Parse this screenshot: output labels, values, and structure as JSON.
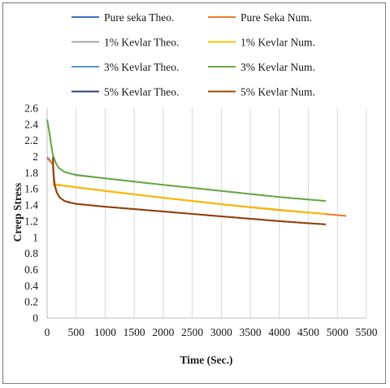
{
  "chart_data": {
    "type": "line",
    "xlabel": "Time (Sec.)",
    "ylabel": "Creep Stress",
    "xlim": [
      0,
      5500
    ],
    "ylim": [
      0,
      2.6
    ],
    "xticks": [
      0,
      500,
      1000,
      1500,
      2000,
      2500,
      3000,
      3500,
      4000,
      4500,
      5000,
      5500
    ],
    "yticks": [
      0,
      0.2,
      0.4,
      0.6,
      0.8,
      1,
      1.2,
      1.4,
      1.6,
      1.8,
      2,
      2.2,
      2.4,
      2.6
    ],
    "ytick_labels": [
      "0",
      "0.2",
      "0.4",
      "0.6",
      "0.8",
      "1",
      "1.2",
      "1.4",
      "1.6",
      "1.8",
      "2",
      "2.2",
      "2.4",
      "2.6"
    ],
    "grid": "vertical",
    "legend_position": "top",
    "series": [
      {
        "name": "Pure seka Theo.",
        "color": "#4472c4",
        "x": [
          0,
          40,
          80,
          100,
          120,
          200,
          300,
          500,
          1000,
          2000,
          3000,
          4000,
          4800
        ],
        "y": [
          1.99,
          1.96,
          1.92,
          1.9,
          1.65,
          1.645,
          1.64,
          1.62,
          1.575,
          1.49,
          1.41,
          1.335,
          1.29
        ]
      },
      {
        "name": "Pure Seka Num.",
        "color": "#ed7d31",
        "x": [
          0,
          40,
          80,
          100,
          120,
          200,
          300,
          500,
          1000,
          2000,
          3000,
          4000,
          5150
        ],
        "y": [
          1.98,
          1.95,
          1.92,
          1.9,
          1.66,
          1.65,
          1.64,
          1.62,
          1.575,
          1.49,
          1.41,
          1.34,
          1.265
        ]
      },
      {
        "name": "1% Kevlar Theo.",
        "color": "#a5a5a5",
        "x": [
          100,
          120,
          200,
          300,
          500,
          1000,
          2000,
          3000,
          4000,
          4800
        ],
        "y": [
          1.67,
          1.655,
          1.645,
          1.64,
          1.62,
          1.575,
          1.49,
          1.41,
          1.335,
          1.29
        ]
      },
      {
        "name": "1% Kevlar Num.",
        "color": "#ffc000",
        "x": [
          100,
          120,
          200,
          300,
          500,
          1000,
          2000,
          3000,
          4000,
          4800
        ],
        "y": [
          1.66,
          1.65,
          1.645,
          1.64,
          1.62,
          1.575,
          1.49,
          1.41,
          1.335,
          1.29
        ]
      },
      {
        "name": "3% Kevlar Theo.",
        "color": "#5b9bd5",
        "x": [
          0,
          30,
          60,
          100,
          150,
          200,
          300,
          400,
          500,
          1000,
          2000,
          3000,
          4000,
          4800
        ],
        "y": [
          2.46,
          2.35,
          2.2,
          2.02,
          1.92,
          1.86,
          1.81,
          1.79,
          1.775,
          1.73,
          1.65,
          1.575,
          1.5,
          1.45
        ]
      },
      {
        "name": "3% Kevlar Num.",
        "color": "#70ad47",
        "x": [
          0,
          30,
          60,
          100,
          150,
          200,
          300,
          400,
          500,
          1000,
          2000,
          3000,
          4000,
          4800
        ],
        "y": [
          2.45,
          2.34,
          2.19,
          2.02,
          1.92,
          1.86,
          1.81,
          1.79,
          1.77,
          1.73,
          1.65,
          1.575,
          1.5,
          1.45
        ]
      },
      {
        "name": "5% Kevlar Theo.",
        "color": "#264478",
        "x": [
          100,
          110,
          130,
          170,
          220,
          300,
          400,
          500,
          1000,
          2000,
          3000,
          4000,
          4800
        ],
        "y": [
          1.99,
          1.8,
          1.65,
          1.55,
          1.49,
          1.45,
          1.43,
          1.415,
          1.38,
          1.32,
          1.26,
          1.2,
          1.16
        ]
      },
      {
        "name": "5% Kevlar Num.",
        "color": "#9e480e",
        "x": [
          100,
          110,
          130,
          170,
          220,
          300,
          400,
          500,
          1000,
          2000,
          3000,
          4000,
          4800
        ],
        "y": [
          1.98,
          1.79,
          1.64,
          1.55,
          1.49,
          1.45,
          1.43,
          1.415,
          1.38,
          1.32,
          1.26,
          1.2,
          1.16
        ]
      }
    ]
  }
}
